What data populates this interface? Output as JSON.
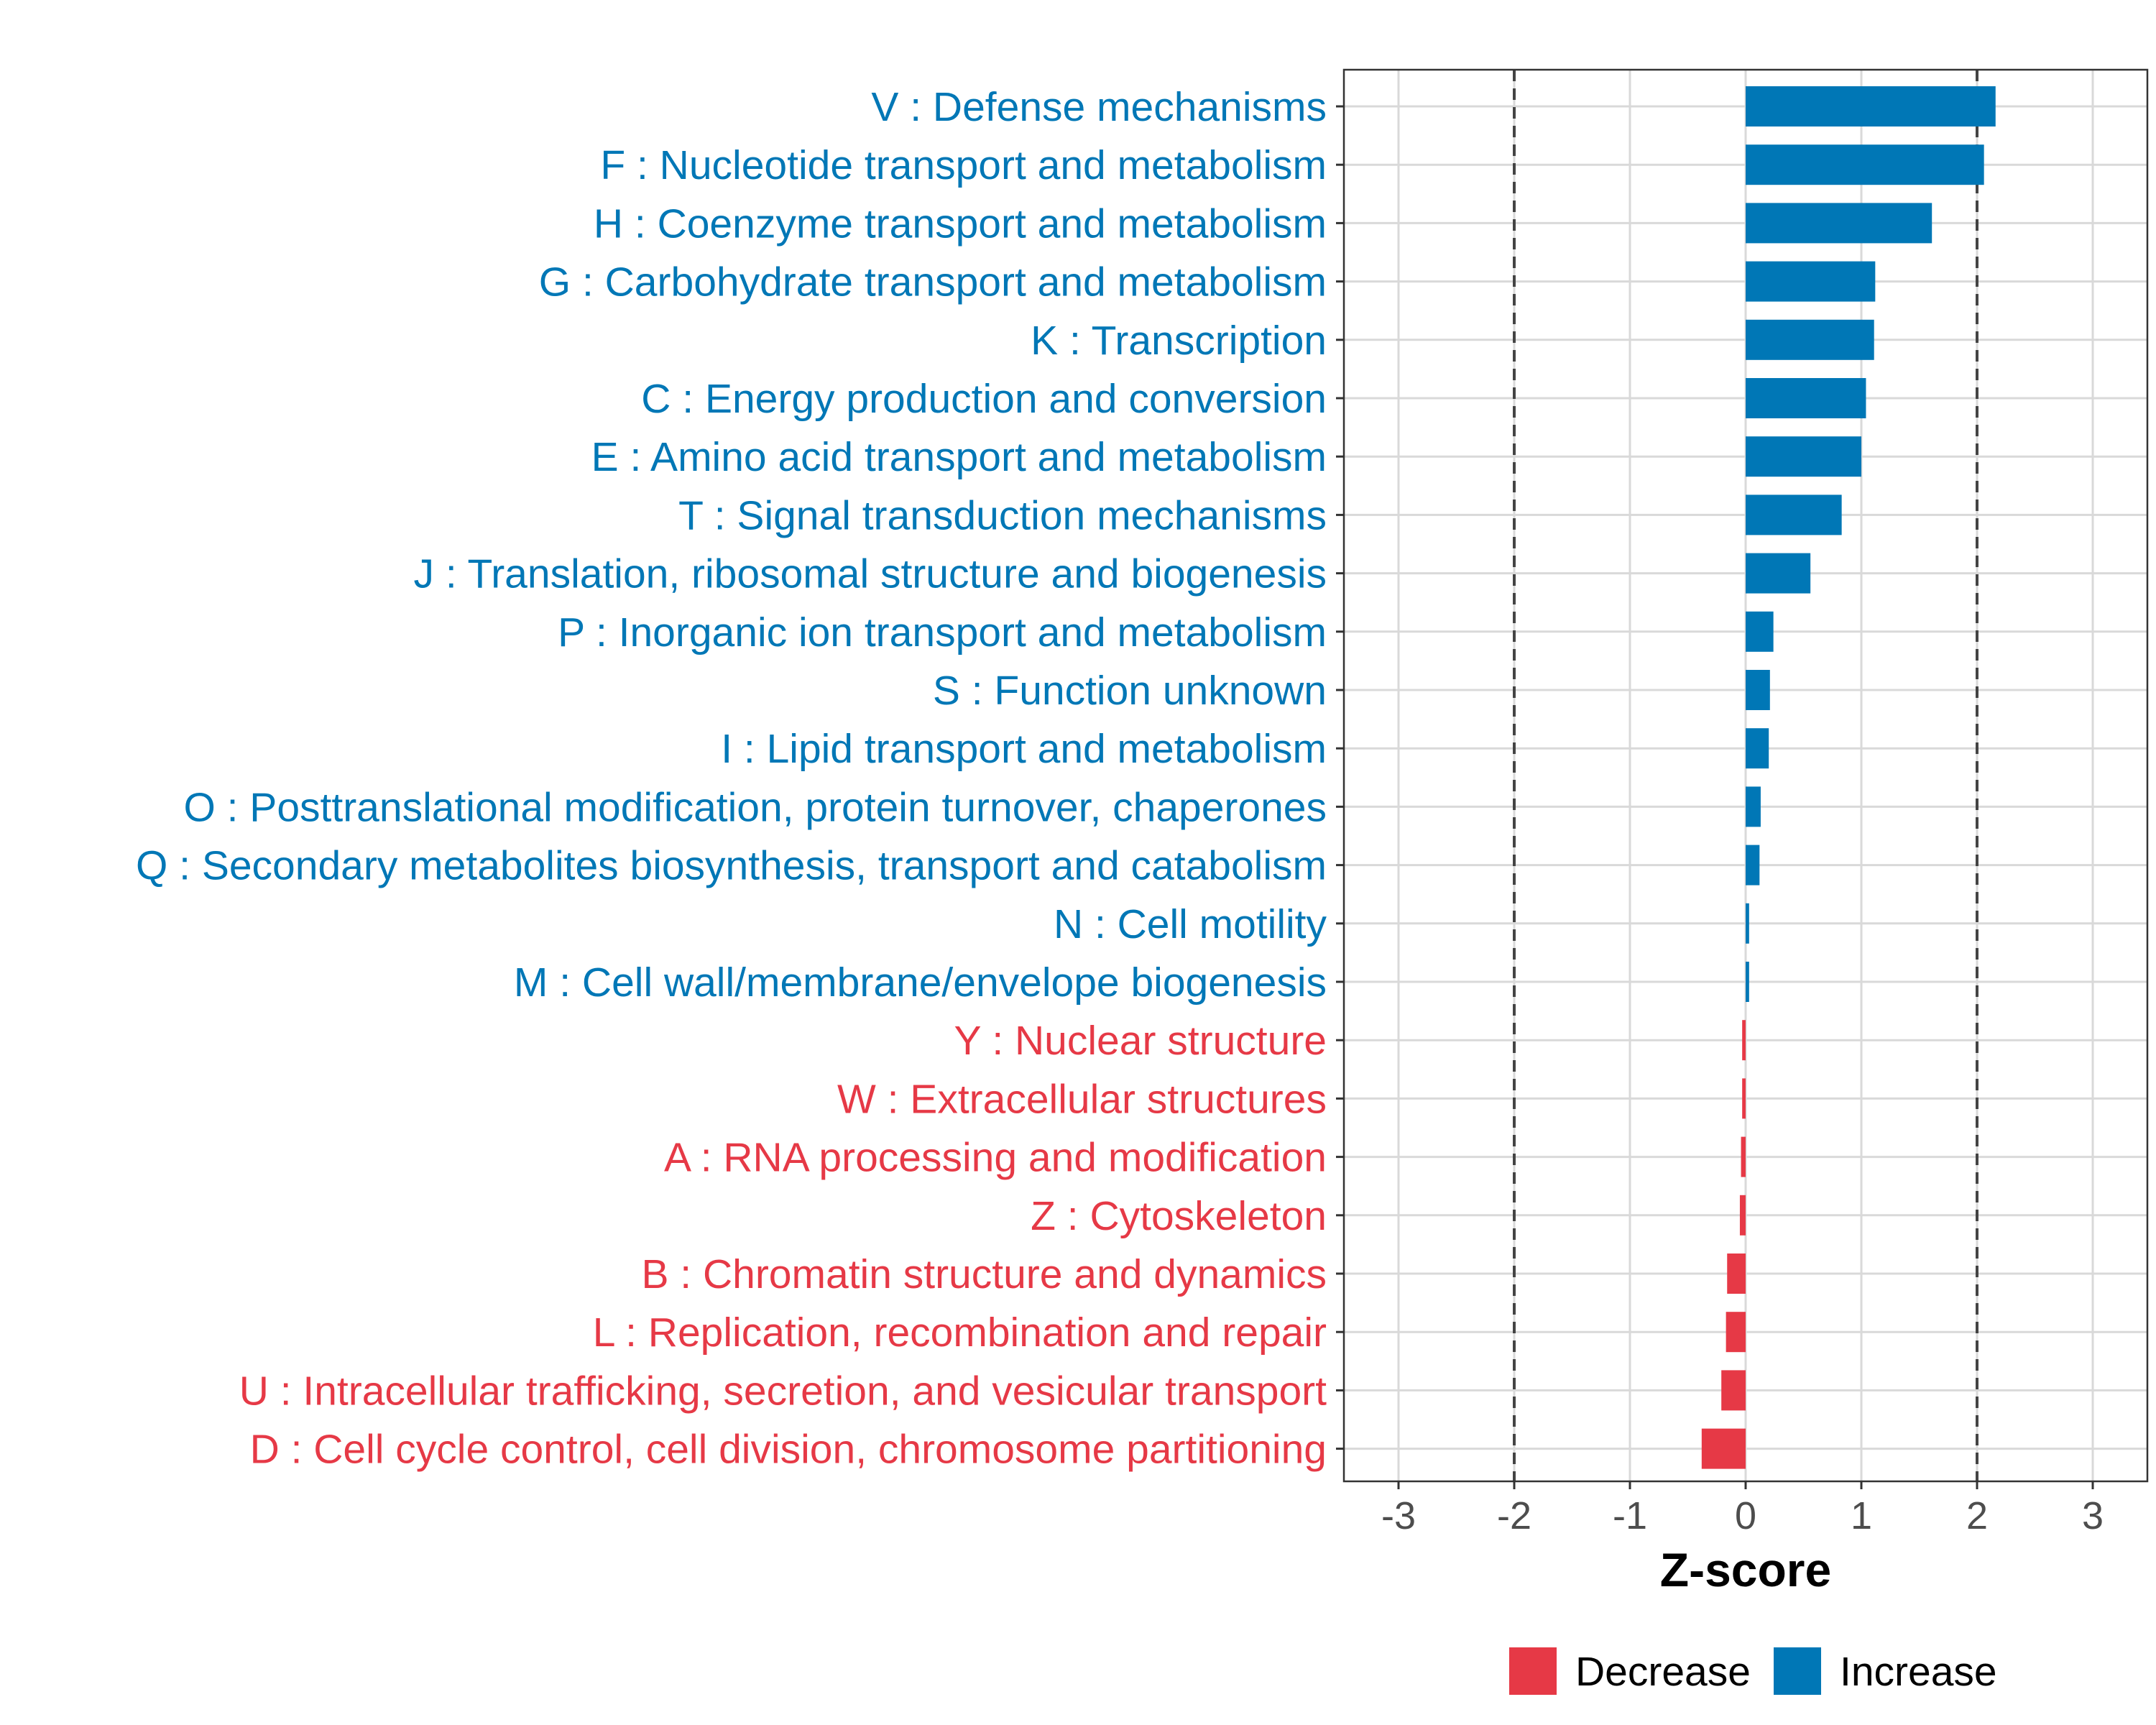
{
  "chart_data": {
    "type": "bar",
    "orientation": "horizontal",
    "xlabel": "Z-score",
    "ylabel": "",
    "xlim": [
      -3.5,
      3.5
    ],
    "xticks": [
      -3,
      -2,
      -1,
      0,
      1,
      2,
      3
    ],
    "xtick_labels": [
      "-3",
      "-2",
      "-1",
      "0",
      "1",
      "2",
      "3"
    ],
    "reference_lines": [
      -2,
      2
    ],
    "grid": true,
    "categories": [
      "V : Defense mechanisms",
      "F : Nucleotide transport and metabolism",
      "H : Coenzyme transport and metabolism",
      "G : Carbohydrate transport and metabolism",
      "K : Transcription",
      "C : Energy production and conversion",
      "E : Amino acid transport and metabolism",
      "T : Signal transduction mechanisms",
      "J : Translation, ribosomal structure and biogenesis",
      "P : Inorganic ion transport and metabolism",
      "S : Function unknown",
      "I : Lipid transport and metabolism",
      "O : Posttranslational modification, protein turnover, chaperones",
      "Q : Secondary metabolites biosynthesis, transport and catabolism",
      "N : Cell motility",
      "M : Cell wall/membrane/envelope biogenesis",
      "Y : Nuclear structure",
      "W : Extracellular structures",
      "A : RNA processing and modification",
      "Z : Cytoskeleton",
      "B : Chromatin structure and dynamics",
      "L : Replication, recombination and repair",
      "U : Intracellular trafficking, secretion, and vesicular transport",
      "D : Cell cycle control, cell division, chromosome partitioning"
    ],
    "values": [
      2.16,
      2.06,
      1.61,
      1.12,
      1.11,
      1.04,
      1.0,
      0.83,
      0.56,
      0.24,
      0.21,
      0.2,
      0.13,
      0.12,
      0.03,
      0.03,
      -0.03,
      -0.03,
      -0.04,
      -0.05,
      -0.16,
      -0.17,
      -0.21,
      -0.38
    ],
    "groups": [
      "Increase",
      "Increase",
      "Increase",
      "Increase",
      "Increase",
      "Increase",
      "Increase",
      "Increase",
      "Increase",
      "Increase",
      "Increase",
      "Increase",
      "Increase",
      "Increase",
      "Increase",
      "Increase",
      "Decrease",
      "Decrease",
      "Decrease",
      "Decrease",
      "Decrease",
      "Decrease",
      "Decrease",
      "Decrease"
    ],
    "legend": {
      "placement": "bottom",
      "entries": [
        {
          "label": "Decrease",
          "color": "#e63946"
        },
        {
          "label": "Increase",
          "color": "#0077b6"
        }
      ]
    },
    "colors": {
      "Increase": "#0077b6",
      "Decrease": "#e63946"
    }
  }
}
